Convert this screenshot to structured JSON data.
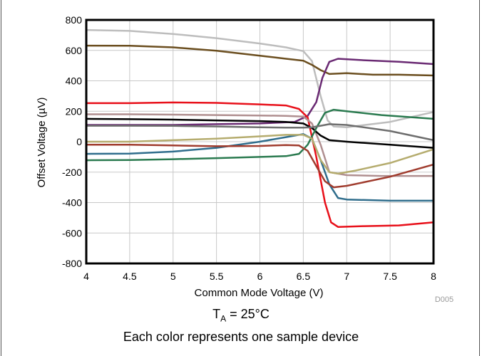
{
  "chart_data": {
    "type": "line",
    "xlabel": "Common Mode Voltage (V)",
    "ylabel": "Offset Voltage (µV)",
    "xlim": [
      4,
      8
    ],
    "ylim": [
      -800,
      800
    ],
    "x_ticks": [
      "4",
      "4.5",
      "5",
      "5.5",
      "6",
      "6.5",
      "7",
      "7.5",
      "8"
    ],
    "y_ticks": [
      "800",
      "600",
      "400",
      "200",
      "0",
      "-200",
      "-400",
      "-600",
      "-800"
    ],
    "x_tick_values": [
      4,
      4.5,
      5,
      5.5,
      6,
      6.5,
      7,
      7.5,
      8
    ],
    "y_tick_values": [
      800,
      600,
      400,
      200,
      0,
      -200,
      -400,
      -600,
      -800
    ],
    "grid": true,
    "figure_id": "D005",
    "series": [
      {
        "color": "#bdbdbd",
        "points": [
          [
            4,
            734
          ],
          [
            4.5,
            728
          ],
          [
            5,
            708
          ],
          [
            5.5,
            680
          ],
          [
            6,
            645
          ],
          [
            6.3,
            620
          ],
          [
            6.5,
            595
          ],
          [
            6.6,
            530
          ],
          [
            6.7,
            300
          ],
          [
            6.78,
            140
          ],
          [
            6.85,
            100
          ],
          [
            7,
            95
          ],
          [
            7.5,
            130
          ],
          [
            8,
            195
          ]
        ]
      },
      {
        "color": "#6b4e1f",
        "points": [
          [
            4,
            631
          ],
          [
            4.5,
            630
          ],
          [
            5,
            620
          ],
          [
            5.5,
            598
          ],
          [
            6,
            565
          ],
          [
            6.3,
            545
          ],
          [
            6.5,
            532
          ],
          [
            6.6,
            505
          ],
          [
            6.7,
            470
          ],
          [
            6.8,
            445
          ],
          [
            7,
            450
          ],
          [
            7.3,
            440
          ],
          [
            7.6,
            440
          ],
          [
            8,
            435
          ]
        ]
      },
      {
        "color": "#6a2a73",
        "points": [
          [
            4,
            110
          ],
          [
            4.5,
            110
          ],
          [
            5,
            110
          ],
          [
            5.5,
            115
          ],
          [
            6,
            120
          ],
          [
            6.4,
            130
          ],
          [
            6.55,
            170
          ],
          [
            6.65,
            260
          ],
          [
            6.72,
            420
          ],
          [
            6.8,
            525
          ],
          [
            6.9,
            545
          ],
          [
            7.2,
            535
          ],
          [
            7.6,
            525
          ],
          [
            8,
            510
          ]
        ]
      },
      {
        "color": "#e8101a",
        "points": [
          [
            4,
            253
          ],
          [
            4.5,
            253
          ],
          [
            5,
            258
          ],
          [
            5.5,
            255
          ],
          [
            6,
            245
          ],
          [
            6.3,
            238
          ],
          [
            6.45,
            215
          ],
          [
            6.55,
            160
          ],
          [
            6.65,
            -100
          ],
          [
            6.75,
            -400
          ],
          [
            6.82,
            -530
          ],
          [
            6.9,
            -560
          ],
          [
            7.2,
            -555
          ],
          [
            7.6,
            -550
          ],
          [
            8,
            -530
          ]
        ]
      },
      {
        "color": "#b08f90",
        "points": [
          [
            4,
            180
          ],
          [
            4.5,
            180
          ],
          [
            5,
            178
          ],
          [
            5.5,
            175
          ],
          [
            6,
            172
          ],
          [
            6.3,
            170
          ],
          [
            6.5,
            165
          ],
          [
            6.6,
            120
          ],
          [
            6.7,
            -20
          ],
          [
            6.8,
            -200
          ],
          [
            7,
            -220
          ],
          [
            7.4,
            -225
          ],
          [
            8,
            -225
          ]
        ]
      },
      {
        "color": "#000000",
        "points": [
          [
            4,
            150
          ],
          [
            4.5,
            148
          ],
          [
            5,
            145
          ],
          [
            5.5,
            140
          ],
          [
            6,
            135
          ],
          [
            6.3,
            130
          ],
          [
            6.5,
            120
          ],
          [
            6.6,
            90
          ],
          [
            6.7,
            40
          ],
          [
            6.8,
            10
          ],
          [
            7,
            0
          ],
          [
            7.5,
            -20
          ],
          [
            8,
            -40
          ]
        ]
      },
      {
        "color": "#2a7a4f",
        "points": [
          [
            4,
            -122
          ],
          [
            4.5,
            -120
          ],
          [
            5,
            -115
          ],
          [
            5.5,
            -108
          ],
          [
            6,
            -100
          ],
          [
            6.3,
            -95
          ],
          [
            6.45,
            -80
          ],
          [
            6.55,
            -20
          ],
          [
            6.65,
            90
          ],
          [
            6.75,
            190
          ],
          [
            6.85,
            210
          ],
          [
            7,
            200
          ],
          [
            7.4,
            175
          ],
          [
            8,
            150
          ]
        ]
      },
      {
        "color": "#2f6d8c",
        "points": [
          [
            4,
            -80
          ],
          [
            4.5,
            -78
          ],
          [
            5,
            -65
          ],
          [
            5.5,
            -40
          ],
          [
            6,
            0
          ],
          [
            6.3,
            30
          ],
          [
            6.5,
            50
          ],
          [
            6.6,
            20
          ],
          [
            6.7,
            -120
          ],
          [
            6.8,
            -280
          ],
          [
            6.9,
            -370
          ],
          [
            7,
            -380
          ],
          [
            7.5,
            -388
          ],
          [
            8,
            -388
          ]
        ]
      },
      {
        "color": "#b5ac6e",
        "points": [
          [
            4,
            0
          ],
          [
            4.5,
            0
          ],
          [
            5,
            10
          ],
          [
            5.5,
            20
          ],
          [
            6,
            35
          ],
          [
            6.3,
            45
          ],
          [
            6.5,
            45
          ],
          [
            6.6,
            20
          ],
          [
            6.7,
            -120
          ],
          [
            6.8,
            -200
          ],
          [
            6.9,
            -210
          ],
          [
            7.1,
            -190
          ],
          [
            7.5,
            -140
          ],
          [
            8,
            -50
          ]
        ]
      },
      {
        "color": "#a03c2e",
        "points": [
          [
            4,
            -20
          ],
          [
            4.5,
            -20
          ],
          [
            5,
            -25
          ],
          [
            5.5,
            -30
          ],
          [
            6,
            -28
          ],
          [
            6.3,
            -22
          ],
          [
            6.45,
            -25
          ],
          [
            6.55,
            -60
          ],
          [
            6.65,
            -160
          ],
          [
            6.75,
            -260
          ],
          [
            6.85,
            -300
          ],
          [
            7,
            -290
          ],
          [
            7.5,
            -230
          ],
          [
            8,
            -150
          ]
        ]
      },
      {
        "color": "#6e6e6e",
        "points": [
          [
            4,
            105
          ],
          [
            4.5,
            105
          ],
          [
            5,
            104
          ],
          [
            5.5,
            100
          ],
          [
            6,
            95
          ],
          [
            6.3,
            92
          ],
          [
            6.5,
            92
          ],
          [
            6.6,
            95
          ],
          [
            6.7,
            105
          ],
          [
            6.8,
            115
          ],
          [
            7,
            110
          ],
          [
            7.5,
            70
          ],
          [
            8,
            10
          ]
        ]
      }
    ]
  },
  "captions": {
    "ta_main": "T",
    "ta_sub": "A",
    "ta_rest": " = 25°C",
    "note": "Each color represents one sample device"
  }
}
